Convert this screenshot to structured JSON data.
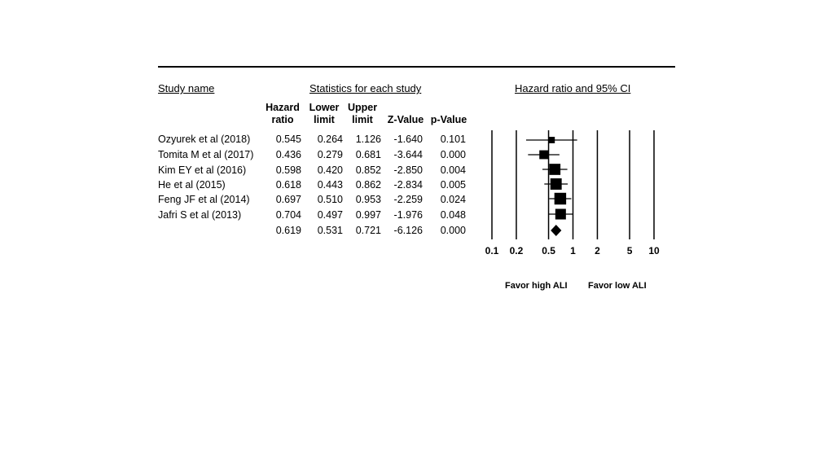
{
  "headers": {
    "study_name": "Study name",
    "statistics": "Statistics for each study",
    "forest": "Hazard ratio and 95% CI"
  },
  "columns": [
    {
      "line1": "Hazard",
      "line2": "ratio"
    },
    {
      "line1": "Lower",
      "line2": "limit"
    },
    {
      "line1": "Upper",
      "line2": "limit"
    },
    {
      "line1": "",
      "line2": "Z-Value"
    },
    {
      "line1": "",
      "line2": "p-Value"
    }
  ],
  "rows": [
    {
      "study": "Ozyurek et al (2018)",
      "hr": "0.545",
      "lower": "0.264",
      "upper": "1.126",
      "z": "-1.640",
      "p": "0.101"
    },
    {
      "study": "Tomita M et al (2017)",
      "hr": "0.436",
      "lower": "0.279",
      "upper": "0.681",
      "z": "-3.644",
      "p": "0.000"
    },
    {
      "study": "Kim EY et al (2016)",
      "hr": "0.598",
      "lower": "0.420",
      "upper": "0.852",
      "z": "-2.850",
      "p": "0.004"
    },
    {
      "study": "He et al (2015)",
      "hr": "0.618",
      "lower": "0.443",
      "upper": "0.862",
      "z": "-2.834",
      "p": "0.005"
    },
    {
      "study": "Feng JF et al (2014)",
      "hr": "0.697",
      "lower": "0.510",
      "upper": "0.953",
      "z": "-2.259",
      "p": "0.024"
    },
    {
      "study": "Jafri S et al (2013)",
      "hr": "0.704",
      "lower": "0.497",
      "upper": "0.997",
      "z": "-1.976",
      "p": "0.048"
    },
    {
      "study": "",
      "hr": "0.619",
      "lower": "0.531",
      "upper": "0.721",
      "z": "-6.126",
      "p": "0.000"
    }
  ],
  "chart_data": {
    "type": "forest",
    "scale": "log",
    "xlim": [
      0.1,
      10
    ],
    "ticks": [
      {
        "value": 0.1,
        "label": "0.1"
      },
      {
        "value": 0.2,
        "label": "0.2"
      },
      {
        "value": 0.5,
        "label": "0.5"
      },
      {
        "value": 1,
        "label": "1"
      },
      {
        "value": 2,
        "label": "2"
      },
      {
        "value": 5,
        "label": "5"
      },
      {
        "value": 10,
        "label": "10"
      }
    ],
    "studies": [
      {
        "hr": 0.545,
        "lower": 0.264,
        "upper": 1.126,
        "weight": 0.35
      },
      {
        "hr": 0.436,
        "lower": 0.279,
        "upper": 0.681,
        "weight": 0.62
      },
      {
        "hr": 0.598,
        "lower": 0.42,
        "upper": 0.852,
        "weight": 0.88
      },
      {
        "hr": 0.618,
        "lower": 0.443,
        "upper": 0.862,
        "weight": 0.9
      },
      {
        "hr": 0.697,
        "lower": 0.51,
        "upper": 0.953,
        "weight": 0.95
      },
      {
        "hr": 0.704,
        "lower": 0.497,
        "upper": 0.997,
        "weight": 0.82
      }
    ],
    "summary": {
      "hr": 0.619,
      "lower": 0.531,
      "upper": 0.721
    },
    "favor_left": "Favor high ALI",
    "favor_right": "Favor low ALI"
  }
}
